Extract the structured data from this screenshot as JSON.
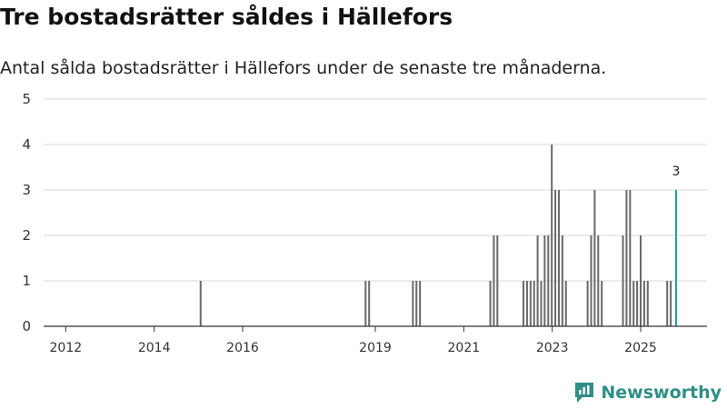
{
  "header": {
    "title": "Tre bostadsrätter såldes i Hällefors",
    "subtitle": "Antal sålda bostadsrätter i Hällefors under de senaste tre månaderna."
  },
  "brand": {
    "name": "Newsworthy",
    "color": "#2f8f87",
    "icon": "newsworthy-logo-icon"
  },
  "colors": {
    "bar": "#6b6b6b",
    "highlight": "#17a398",
    "grid": "#d9d9d9",
    "axis": "#333333"
  },
  "chart_data": {
    "type": "bar",
    "title": "Tre bostadsrätter såldes i Hällefors",
    "xlabel": "",
    "ylabel": "",
    "ylim": [
      0,
      5
    ],
    "yticks": [
      0,
      1,
      2,
      3,
      4,
      5
    ],
    "xlim": [
      2011.5,
      2026.5
    ],
    "xticks": [
      2012,
      2014,
      2016,
      2019,
      2021,
      2023,
      2025
    ],
    "grid": true,
    "bar_width_years": 0.042,
    "series": [
      {
        "name": "Sålda bostadsrätter",
        "points": [
          {
            "x": 2015.05,
            "y": 1
          },
          {
            "x": 2018.78,
            "y": 1
          },
          {
            "x": 2018.86,
            "y": 1
          },
          {
            "x": 2019.85,
            "y": 1
          },
          {
            "x": 2019.93,
            "y": 1
          },
          {
            "x": 2020.01,
            "y": 1
          },
          {
            "x": 2021.6,
            "y": 1
          },
          {
            "x": 2021.68,
            "y": 2
          },
          {
            "x": 2021.76,
            "y": 2
          },
          {
            "x": 2022.35,
            "y": 1
          },
          {
            "x": 2022.43,
            "y": 1
          },
          {
            "x": 2022.51,
            "y": 1
          },
          {
            "x": 2022.59,
            "y": 1
          },
          {
            "x": 2022.67,
            "y": 2
          },
          {
            "x": 2022.75,
            "y": 1
          },
          {
            "x": 2022.83,
            "y": 2
          },
          {
            "x": 2022.91,
            "y": 2
          },
          {
            "x": 2022.99,
            "y": 4
          },
          {
            "x": 2023.07,
            "y": 3
          },
          {
            "x": 2023.15,
            "y": 3
          },
          {
            "x": 2023.23,
            "y": 2
          },
          {
            "x": 2023.31,
            "y": 1
          },
          {
            "x": 2023.8,
            "y": 1
          },
          {
            "x": 2023.88,
            "y": 2
          },
          {
            "x": 2023.96,
            "y": 3
          },
          {
            "x": 2024.04,
            "y": 2
          },
          {
            "x": 2024.12,
            "y": 1
          },
          {
            "x": 2024.6,
            "y": 2
          },
          {
            "x": 2024.68,
            "y": 3
          },
          {
            "x": 2024.76,
            "y": 3
          },
          {
            "x": 2024.84,
            "y": 1
          },
          {
            "x": 2024.92,
            "y": 1
          },
          {
            "x": 2025.0,
            "y": 2
          },
          {
            "x": 2025.08,
            "y": 1
          },
          {
            "x": 2025.16,
            "y": 1
          },
          {
            "x": 2025.6,
            "y": 1
          },
          {
            "x": 2025.68,
            "y": 1
          }
        ]
      },
      {
        "name": "Senaste tre månaderna",
        "highlight": true,
        "points": [
          {
            "x": 2025.8,
            "y": 3,
            "label": "3"
          }
        ]
      }
    ]
  }
}
